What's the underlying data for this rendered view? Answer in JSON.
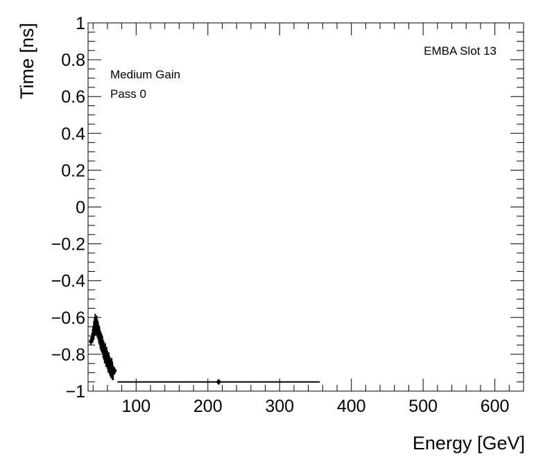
{
  "chart_data": {
    "type": "scatter",
    "title": "",
    "xlabel": "Energy [GeV]",
    "ylabel": "Time [ns]",
    "xlim": [
      33,
      640
    ],
    "ylim": [
      -1,
      1
    ],
    "x_ticks": [
      100,
      200,
      300,
      400,
      500,
      600
    ],
    "x_tick_labels": [
      "100",
      "200",
      "300",
      "400",
      "500",
      "600"
    ],
    "y_ticks": [
      -1,
      -0.8,
      -0.6,
      -0.4,
      -0.2,
      0,
      0.2,
      0.4,
      0.6,
      0.8,
      1
    ],
    "y_tick_labels": [
      "−1",
      "−0.8",
      "−0.6",
      "−0.4",
      "−0.2",
      "0",
      "0.2",
      "0.4",
      "0.6",
      "0.8",
      "1"
    ],
    "grid": false,
    "annotations": {
      "detector": "EMBA Slot 13",
      "gain": "Medium Gain",
      "pass": "Pass 0"
    },
    "series": [
      {
        "points": [
          {
            "x": 37,
            "y": -0.73,
            "xerr": 1.0,
            "yerr": 0.02
          },
          {
            "x": 39,
            "y": -0.71,
            "xerr": 1.0,
            "yerr": 0.03
          },
          {
            "x": 40,
            "y": -0.69,
            "xerr": 1.0,
            "yerr": 0.04
          },
          {
            "x": 41,
            "y": -0.67,
            "xerr": 1.0,
            "yerr": 0.05
          },
          {
            "x": 42,
            "y": -0.65,
            "xerr": 1.0,
            "yerr": 0.05
          },
          {
            "x": 43,
            "y": -0.63,
            "xerr": 1.0,
            "yerr": 0.05
          },
          {
            "x": 44,
            "y": -0.65,
            "xerr": 1.0,
            "yerr": 0.05
          },
          {
            "x": 45,
            "y": -0.64,
            "xerr": 1.0,
            "yerr": 0.05
          },
          {
            "x": 46,
            "y": -0.66,
            "xerr": 1.0,
            "yerr": 0.05
          },
          {
            "x": 47,
            "y": -0.67,
            "xerr": 1.0,
            "yerr": 0.05
          },
          {
            "x": 48,
            "y": -0.69,
            "xerr": 1.0,
            "yerr": 0.05
          },
          {
            "x": 49,
            "y": -0.7,
            "xerr": 1.0,
            "yerr": 0.05
          },
          {
            "x": 50,
            "y": -0.72,
            "xerr": 1.0,
            "yerr": 0.05
          },
          {
            "x": 51,
            "y": -0.73,
            "xerr": 1.0,
            "yerr": 0.05
          },
          {
            "x": 52,
            "y": -0.74,
            "xerr": 1.0,
            "yerr": 0.05
          },
          {
            "x": 53,
            "y": -0.75,
            "xerr": 1.0,
            "yerr": 0.05
          },
          {
            "x": 54,
            "y": -0.77,
            "xerr": 1.0,
            "yerr": 0.05
          },
          {
            "x": 55,
            "y": -0.78,
            "xerr": 1.0,
            "yerr": 0.05
          },
          {
            "x": 56,
            "y": -0.8,
            "xerr": 1.0,
            "yerr": 0.05
          },
          {
            "x": 57,
            "y": -0.79,
            "xerr": 1.0,
            "yerr": 0.05
          },
          {
            "x": 58,
            "y": -0.82,
            "xerr": 1.0,
            "yerr": 0.05
          },
          {
            "x": 59,
            "y": -0.81,
            "xerr": 1.0,
            "yerr": 0.05
          },
          {
            "x": 60,
            "y": -0.83,
            "xerr": 1.0,
            "yerr": 0.05
          },
          {
            "x": 61,
            "y": -0.85,
            "xerr": 1.0,
            "yerr": 0.05
          },
          {
            "x": 62,
            "y": -0.84,
            "xerr": 1.0,
            "yerr": 0.05
          },
          {
            "x": 63,
            "y": -0.86,
            "xerr": 1.0,
            "yerr": 0.05
          },
          {
            "x": 64,
            "y": -0.87,
            "xerr": 1.0,
            "yerr": 0.05
          },
          {
            "x": 65,
            "y": -0.88,
            "xerr": 1.0,
            "yerr": 0.05
          },
          {
            "x": 66,
            "y": -0.87,
            "xerr": 1.0,
            "yerr": 0.05
          },
          {
            "x": 67,
            "y": -0.89,
            "xerr": 1.0,
            "yerr": 0.05
          },
          {
            "x": 68,
            "y": -0.9,
            "xerr": 1.0,
            "yerr": 0.04
          },
          {
            "x": 70,
            "y": -0.89,
            "xerr": 1.5,
            "yerr": 0.02
          },
          {
            "x": 215,
            "y": -0.95,
            "xerr": 141,
            "yerr": 0.015
          }
        ]
      }
    ]
  }
}
